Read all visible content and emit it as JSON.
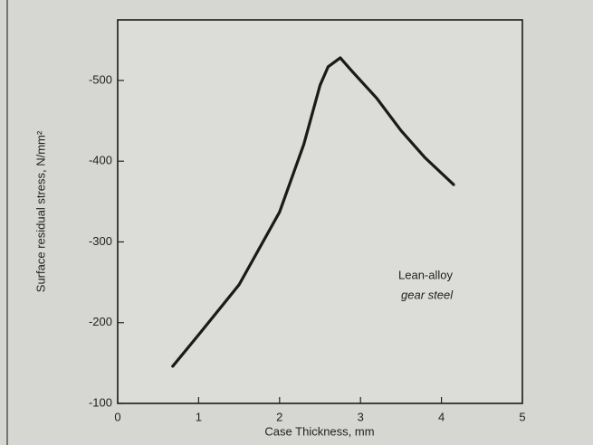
{
  "chart_data": {
    "type": "line",
    "x_label": "Case Thickness, mm",
    "y_label": "Surface residual stress, N/mm²",
    "annotations": [
      "Lean-alloy",
      "gear steel"
    ],
    "xlim": [
      0,
      5
    ],
    "xticks": [
      0,
      1,
      2,
      3,
      4,
      5
    ],
    "ylim": [
      -100,
      -575
    ],
    "yticks": [
      -100,
      -200,
      -300,
      -400,
      -500
    ],
    "grid": false,
    "series": [
      {
        "color": "#1a1a1a",
        "x": [
          0.68,
          1.0,
          1.5,
          2.0,
          2.3,
          2.5,
          2.6,
          2.75,
          2.9,
          3.2,
          3.5,
          3.8,
          4.15
        ],
        "values": [
          -146,
          -185,
          -247,
          -337,
          -421,
          -494,
          -517,
          -528,
          -511,
          -478,
          -438,
          -404,
          -371
        ]
      }
    ]
  }
}
